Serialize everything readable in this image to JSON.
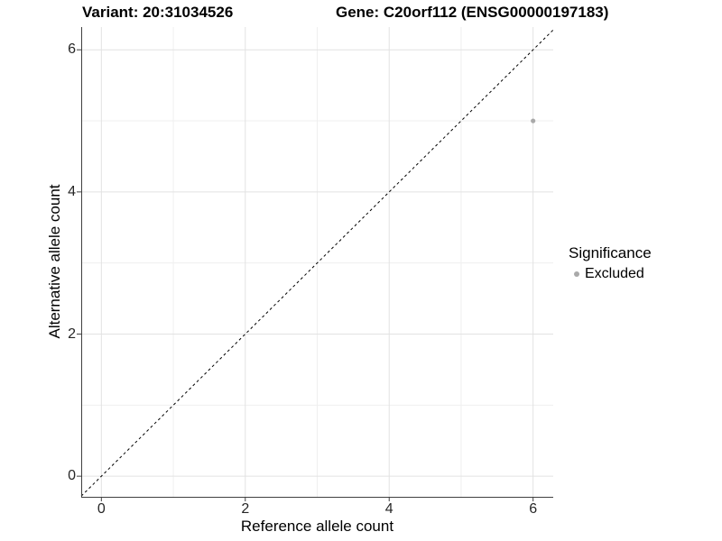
{
  "header": {
    "variant_title": "Variant: 20:31034526",
    "gene_title": "Gene: C20orf112 (ENSG00000197183)"
  },
  "axes": {
    "x": {
      "label": "Reference allele count",
      "tick_labels": [
        "0",
        "2",
        "4",
        "6"
      ],
      "tick_values": [
        0,
        2,
        4,
        6
      ]
    },
    "y": {
      "label": "Alternative allele count",
      "tick_labels": [
        "0",
        "2",
        "4",
        "6"
      ],
      "tick_values": [
        0,
        2,
        4,
        6
      ]
    }
  },
  "legend": {
    "title": "Significance",
    "items": [
      {
        "label": "Excluded",
        "marker": "dot-icon",
        "color": "#a9a9a9"
      }
    ]
  },
  "chart_data": {
    "type": "scatter",
    "title": "Variant: 20:31034526 | Gene: C20orf112 (ENSG00000197183)",
    "xlabel": "Reference allele count",
    "ylabel": "Alternative allele count",
    "xlim": [
      -0.28,
      6.28
    ],
    "ylim": [
      -0.29,
      6.32
    ],
    "x_major_ticks": [
      0,
      2,
      4,
      6
    ],
    "y_major_ticks": [
      0,
      2,
      4,
      6
    ],
    "x_minor_ticks": [
      1,
      3,
      5
    ],
    "y_minor_ticks": [
      1,
      3,
      5
    ],
    "grid": "major+minor",
    "legend_position": "right",
    "series": [
      {
        "name": "Excluded",
        "color": "#a9a9a9",
        "points": [
          [
            6,
            5
          ]
        ]
      }
    ],
    "reference_line": {
      "type": "identity",
      "slope": 1,
      "intercept": 0,
      "style": "dashed",
      "color": "#000000"
    }
  },
  "colors": {
    "grid_major": "#e2e2e2",
    "grid_minor": "#efefef",
    "axis_line": "#404040",
    "tick_text": "#262626",
    "point": "#a9a9a9",
    "dashed_line": "#000000"
  }
}
